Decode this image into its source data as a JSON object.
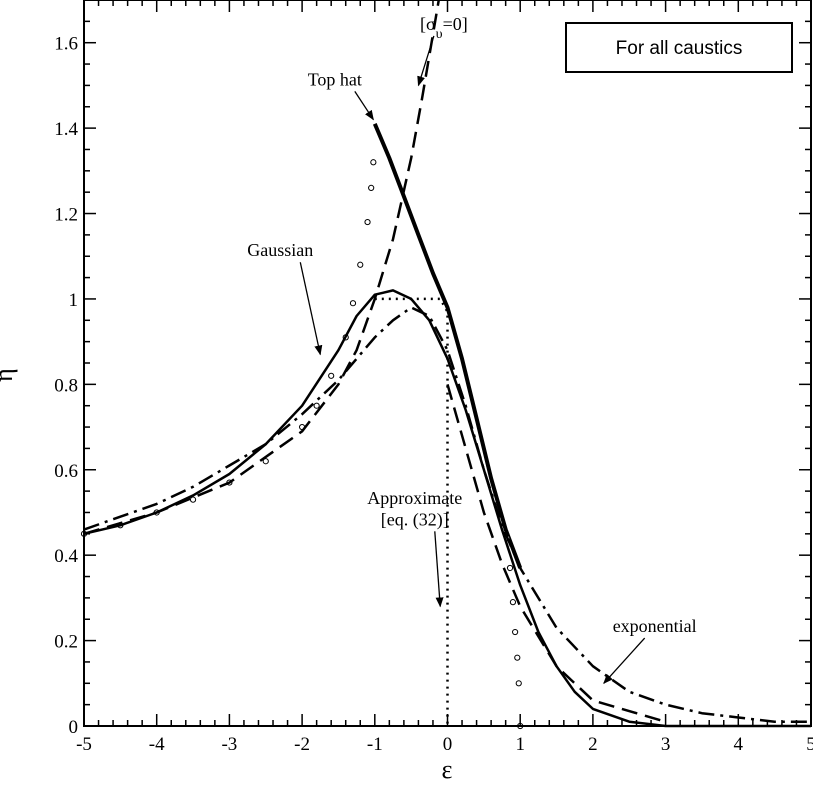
{
  "chart_data": {
    "type": "line",
    "title": "",
    "xlabel": "ε",
    "ylabel": "η",
    "xlim": [
      -5,
      5
    ],
    "ylim": [
      0,
      1.7
    ],
    "x_ticks": [
      "-5",
      "-4",
      "-3",
      "-2",
      "-1",
      "0",
      "1",
      "2",
      "3",
      "4",
      "5"
    ],
    "y_ticks": [
      "0",
      "0.2",
      "0.4",
      "0.6",
      "0.8",
      "1",
      "1.2",
      "1.4",
      "1.6"
    ],
    "grid": false,
    "legend_box": "For all caustics",
    "series": [
      {
        "key": "top_hat",
        "style": "thick-solid",
        "x": [
          -1.0,
          -0.8,
          -0.6,
          -0.4,
          -0.2,
          0.0,
          0.2,
          0.4,
          0.6,
          0.8,
          1.0
        ],
        "y": [
          1.41,
          1.33,
          1.24,
          1.15,
          1.06,
          0.98,
          0.86,
          0.72,
          0.58,
          0.46,
          0.37
        ]
      },
      {
        "key": "top_hat_markers",
        "style": "circles",
        "x": [
          -5,
          -4.5,
          -4,
          -3.5,
          -3,
          -2.5,
          -2,
          -1.8,
          -1.6,
          -1.4,
          -1.3,
          -1.2,
          -1.1,
          -1.05,
          -1.02,
          0.82,
          0.86,
          0.9,
          0.93,
          0.96,
          0.98,
          1.0
        ],
        "y": [
          0.45,
          0.47,
          0.5,
          0.53,
          0.57,
          0.62,
          0.7,
          0.75,
          0.82,
          0.91,
          0.99,
          1.08,
          1.18,
          1.26,
          1.32,
          0.44,
          0.37,
          0.29,
          0.22,
          0.16,
          0.1,
          0.0
        ]
      },
      {
        "key": "gaussian",
        "style": "solid",
        "x": [
          -5,
          -4.5,
          -4,
          -3.5,
          -3,
          -2.5,
          -2,
          -1.5,
          -1.25,
          -1.0,
          -0.75,
          -0.5,
          -0.25,
          0.0,
          0.25,
          0.5,
          0.75,
          1.0,
          1.25,
          1.5,
          1.75,
          2.0,
          2.5,
          3.0,
          4.0,
          5.0
        ],
        "y": [
          0.45,
          0.47,
          0.5,
          0.54,
          0.59,
          0.66,
          0.75,
          0.88,
          0.96,
          1.01,
          1.02,
          1.0,
          0.95,
          0.86,
          0.74,
          0.6,
          0.46,
          0.33,
          0.22,
          0.14,
          0.08,
          0.04,
          0.01,
          0.0,
          0.0,
          0.0
        ]
      },
      {
        "key": "exponential",
        "style": "dash-dot",
        "x": [
          -5,
          -4.5,
          -4,
          -3.5,
          -3,
          -2.5,
          -2,
          -1.5,
          -1.0,
          -0.75,
          -0.5,
          -0.25,
          0.0,
          0.25,
          0.5,
          0.75,
          1.0,
          1.5,
          2.0,
          2.5,
          3.0,
          3.5,
          4.0,
          4.5,
          5.0
        ],
        "y": [
          0.46,
          0.49,
          0.52,
          0.56,
          0.61,
          0.66,
          0.73,
          0.81,
          0.91,
          0.95,
          0.98,
          0.96,
          0.88,
          0.75,
          0.6,
          0.47,
          0.37,
          0.23,
          0.14,
          0.08,
          0.05,
          0.03,
          0.02,
          0.01,
          0.01
        ]
      },
      {
        "key": "sigma_zero",
        "style": "dashed",
        "x": [
          -5,
          -4,
          -3,
          -2,
          -1.5,
          -1.25,
          -1.0,
          -0.75,
          -0.5,
          -0.35,
          -0.2,
          -0.1
        ],
        "y": [
          0.45,
          0.5,
          0.57,
          0.69,
          0.8,
          0.88,
          1.0,
          1.14,
          1.33,
          1.47,
          1.62,
          1.72
        ]
      },
      {
        "key": "sigma_zero_right",
        "style": "dashed",
        "x": [
          0.0,
          0.25,
          0.5,
          0.75,
          1.0,
          1.5,
          2.0,
          3.0
        ],
        "y": [
          0.8,
          0.65,
          0.5,
          0.38,
          0.28,
          0.14,
          0.06,
          0.01
        ]
      },
      {
        "key": "approximate",
        "style": "dotted",
        "x": [
          -1.0,
          -0.5,
          -0.1,
          0.0,
          0.0
        ],
        "y": [
          1.0,
          1.0,
          1.0,
          0.97,
          0.0
        ]
      }
    ],
    "annotations": [
      {
        "key": "top_hat",
        "text": "Top hat",
        "x": -1.55,
        "y": 1.5,
        "arrow_to": [
          -1.02,
          1.42
        ]
      },
      {
        "key": "sigma_v",
        "text_base": "[σ",
        "text_sub": "υ",
        "text_end": "=0]",
        "x": -0.05,
        "y": 1.63,
        "arrow_to": [
          -0.4,
          1.5
        ]
      },
      {
        "key": "gaussian",
        "text": "Gaussian",
        "x": -2.3,
        "y": 1.1,
        "arrow_to": [
          -1.75,
          0.87
        ]
      },
      {
        "key": "approximate_line1",
        "text": "Approximate",
        "x": -0.45,
        "y": 0.52
      },
      {
        "key": "approximate_line2",
        "text": "[eq. (32)]",
        "x": -0.45,
        "y": 0.47,
        "arrow_to": [
          -0.1,
          0.28
        ]
      },
      {
        "key": "exponential",
        "text": "exponential",
        "x": 2.85,
        "y": 0.22,
        "arrow_to": [
          2.15,
          0.1
        ]
      }
    ],
    "colors": {
      "line": "#000000",
      "background": "#ffffff"
    }
  }
}
